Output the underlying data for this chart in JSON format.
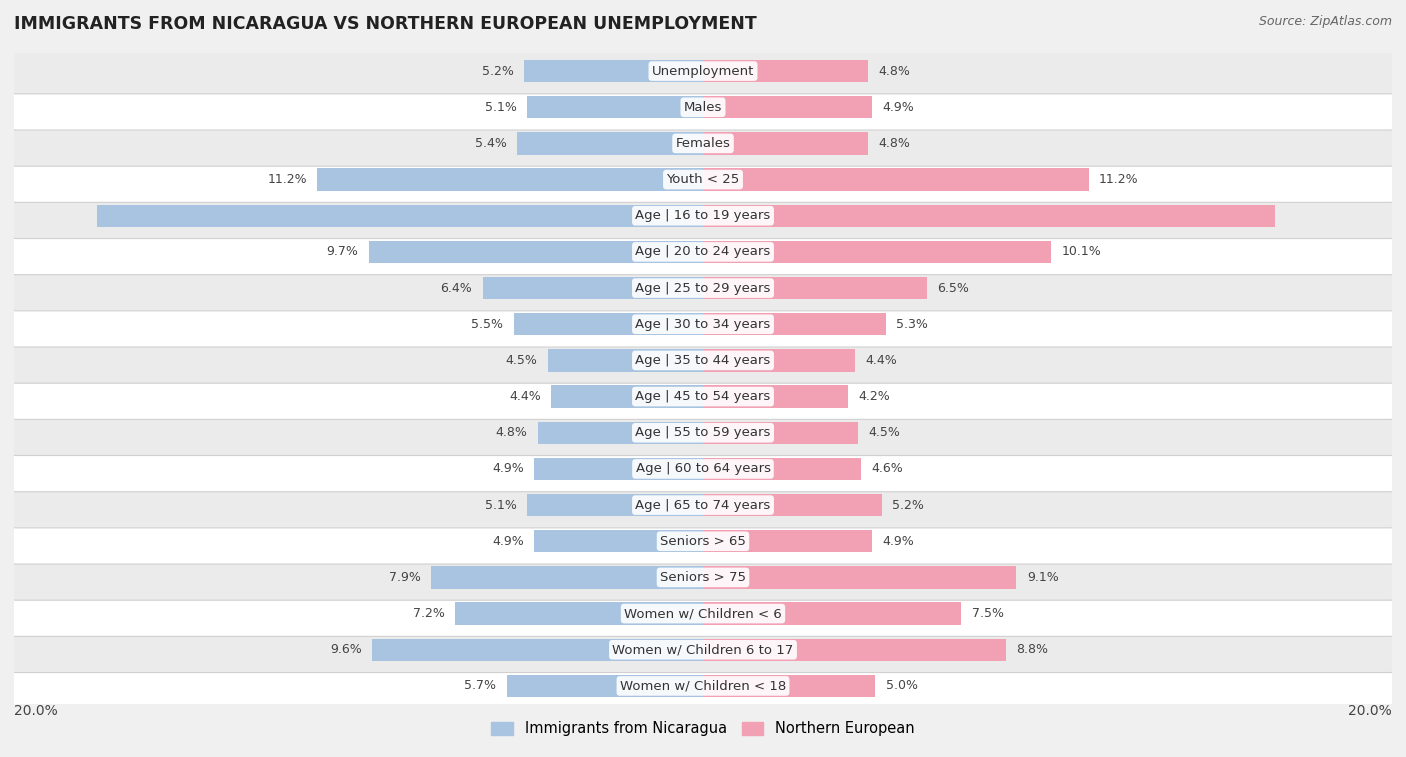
{
  "title": "IMMIGRANTS FROM NICARAGUA VS NORTHERN EUROPEAN UNEMPLOYMENT",
  "source": "Source: ZipAtlas.com",
  "categories": [
    "Unemployment",
    "Males",
    "Females",
    "Youth < 25",
    "Age | 16 to 19 years",
    "Age | 20 to 24 years",
    "Age | 25 to 29 years",
    "Age | 30 to 34 years",
    "Age | 35 to 44 years",
    "Age | 45 to 54 years",
    "Age | 55 to 59 years",
    "Age | 60 to 64 years",
    "Age | 65 to 74 years",
    "Seniors > 65",
    "Seniors > 75",
    "Women w/ Children < 6",
    "Women w/ Children 6 to 17",
    "Women w/ Children < 18"
  ],
  "nicaragua_values": [
    5.2,
    5.1,
    5.4,
    11.2,
    17.6,
    9.7,
    6.4,
    5.5,
    4.5,
    4.4,
    4.8,
    4.9,
    5.1,
    4.9,
    7.9,
    7.2,
    9.6,
    5.7
  ],
  "northern_values": [
    4.8,
    4.9,
    4.8,
    11.2,
    16.6,
    10.1,
    6.5,
    5.3,
    4.4,
    4.2,
    4.5,
    4.6,
    5.2,
    4.9,
    9.1,
    7.5,
    8.8,
    5.0
  ],
  "nicaragua_color": "#a8c4e0",
  "northern_color": "#f2a0b4",
  "bar_height": 0.62,
  "max_value": 20.0,
  "background_color": "#f0f0f0",
  "legend_nicaragua": "Immigrants from Nicaragua",
  "legend_northern": "Northern European"
}
